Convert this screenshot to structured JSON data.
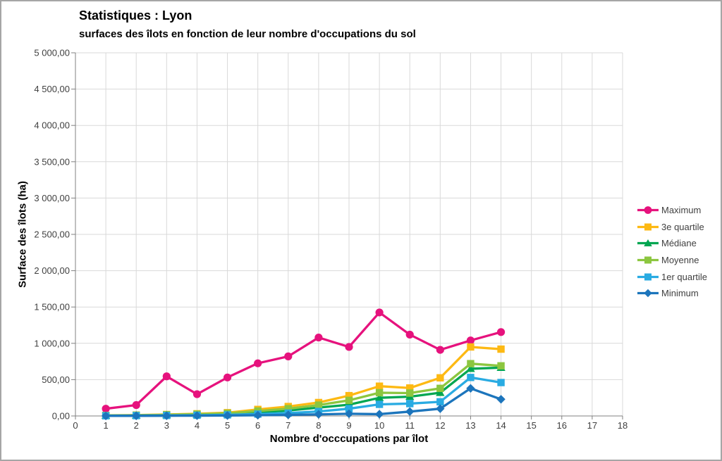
{
  "title": "Statistiques : Lyon",
  "subtitle": "surfaces des îlots en fonction de leur nombre d'occupations du sol",
  "chart_data": {
    "type": "line",
    "title": "Statistiques : Lyon — surfaces des îlots en fonction de leur nombre d'occupations du sol",
    "xlabel": "Nombre d'occcupations par îlot",
    "ylabel": "Surface des îlots (ha)",
    "x": [
      1,
      2,
      3,
      4,
      5,
      6,
      7,
      8,
      9,
      10,
      11,
      12,
      13,
      14
    ],
    "xlim": [
      0,
      18
    ],
    "ylim": [
      0,
      5000
    ],
    "x_tick_labels": [
      "0",
      "1",
      "2",
      "3",
      "4",
      "5",
      "6",
      "7",
      "8",
      "9",
      "10",
      "11",
      "12",
      "13",
      "14",
      "15",
      "16",
      "17",
      "18"
    ],
    "y_tick_values": [
      0,
      500,
      1000,
      1500,
      2000,
      2500,
      3000,
      3500,
      4000,
      4500,
      5000
    ],
    "y_tick_labels": [
      "0,00",
      "500,00",
      "1 000,00",
      "1 500,00",
      "2 000,00",
      "2 500,00",
      "3 000,00",
      "3 500,00",
      "4 000,00",
      "4 500,00",
      "5 000,00"
    ],
    "grid": true,
    "legend_position": "right",
    "colors": {
      "grid": "#d9d9d9",
      "axis": "#808080",
      "tick_text": "#404040"
    },
    "series": [
      {
        "name": "Maximum",
        "color": "#E6127D",
        "marker": "circle",
        "values": [
          100,
          150,
          545,
          300,
          530,
          725,
          820,
          1080,
          950,
          1425,
          1120,
          910,
          1040,
          1155
        ]
      },
      {
        "name": "3e quartile",
        "color": "#FDB913",
        "marker": "square",
        "values": [
          8,
          12,
          20,
          30,
          45,
          90,
          130,
          185,
          280,
          410,
          385,
          525,
          950,
          920
        ]
      },
      {
        "name": "Médiane",
        "color": "#00A651",
        "marker": "triangle",
        "values": [
          5,
          8,
          13,
          18,
          28,
          50,
          75,
          115,
          155,
          250,
          265,
          320,
          650,
          665
        ]
      },
      {
        "name": "Moyenne",
        "color": "#8CC63F",
        "marker": "square",
        "values": [
          6,
          10,
          16,
          24,
          36,
          68,
          100,
          150,
          215,
          320,
          315,
          380,
          720,
          690
        ]
      },
      {
        "name": "1er quartile",
        "color": "#29ABE2",
        "marker": "square",
        "values": [
          3,
          5,
          7,
          10,
          15,
          26,
          40,
          62,
          100,
          160,
          170,
          195,
          530,
          460
        ]
      },
      {
        "name": "Minimum",
        "color": "#1C75BC",
        "marker": "diamond",
        "values": [
          1,
          2,
          3,
          4,
          6,
          10,
          15,
          22,
          30,
          25,
          60,
          100,
          380,
          230
        ]
      }
    ]
  }
}
